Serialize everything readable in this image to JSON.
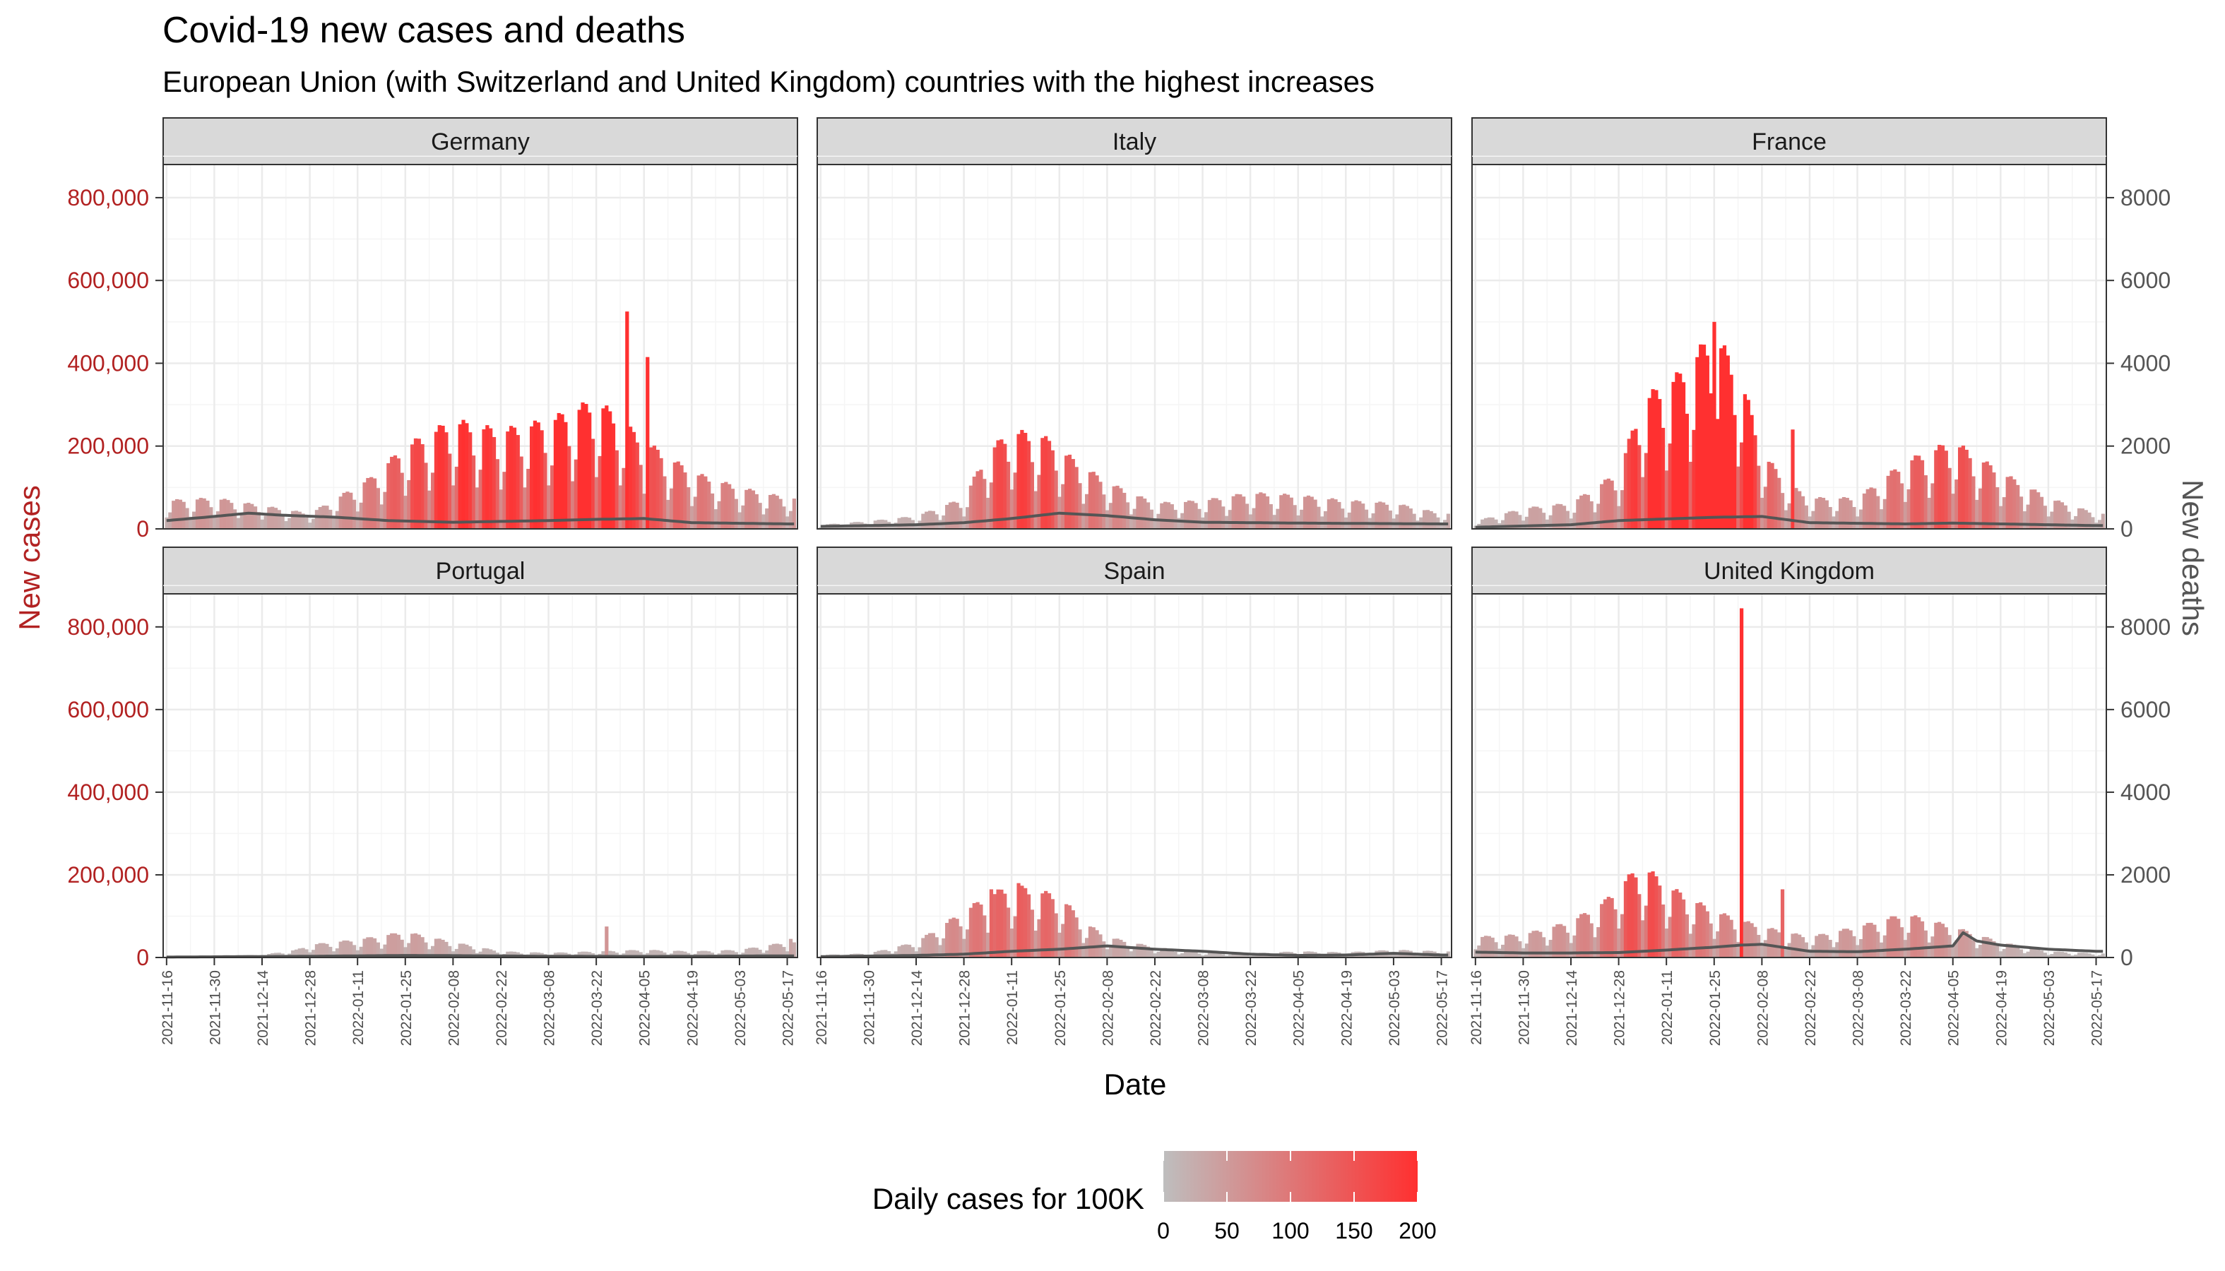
{
  "colors": {
    "low": "#BEBEBE",
    "high": "#FF3030",
    "cases_axis": "#B22222",
    "deaths_axis": "#555555",
    "deaths_line": "#555555",
    "grid_major": "#EBEBEB",
    "grid_minor": "#F5F5F5",
    "strip_fill": "#D9D9D9"
  },
  "chart_data": {
    "type": "bar",
    "title": "Covid-19 new cases and deaths",
    "subtitle": "European Union (with Switzerland and United Kingdom) countries with the highest increases",
    "xlabel": "Date",
    "ylabel_left": "New cases",
    "ylabel_right": "New deaths",
    "x_range": [
      "2021-11-15",
      "2022-05-20"
    ],
    "x_ticks": [
      "2021-11-16",
      "2021-11-30",
      "2021-12-14",
      "2021-12-28",
      "2022-01-11",
      "2022-01-25",
      "2022-02-08",
      "2022-02-22",
      "2022-03-08",
      "2022-03-22",
      "2022-04-05",
      "2022-04-19",
      "2022-05-03",
      "2022-05-17"
    ],
    "ylim_left": [
      0,
      880000
    ],
    "ylim_right": [
      0,
      8800
    ],
    "y_ticks_left": [
      0,
      200000,
      400000,
      600000,
      800000
    ],
    "y_tick_labels_left": [
      "0",
      "200,000",
      "400,000",
      "600,000",
      "800,000"
    ],
    "y_ticks_right": [
      0,
      2000,
      4000,
      6000,
      8000
    ],
    "y_tick_labels_right": [
      "0",
      "2000",
      "4000",
      "6000",
      "8000"
    ],
    "grid": true,
    "legend": {
      "title": "Daily cases for 100K",
      "position": "bottom",
      "scale": [
        0,
        200
      ],
      "ticks": [
        0,
        50,
        100,
        150,
        200
      ],
      "tick_labels": [
        "0",
        "50",
        "100",
        "150",
        "200"
      ]
    },
    "facets": [
      {
        "name": "Germany",
        "cases_mean": [
          [
            "2021-11-16",
            55000
          ],
          [
            "2021-11-30",
            60000
          ],
          [
            "2021-12-14",
            45000
          ],
          [
            "2021-12-28",
            30000
          ],
          [
            "2022-01-05",
            60000
          ],
          [
            "2022-01-15",
            100000
          ],
          [
            "2022-01-25",
            160000
          ],
          [
            "2022-02-08",
            210000
          ],
          [
            "2022-02-22",
            190000
          ],
          [
            "2022-03-08",
            210000
          ],
          [
            "2022-03-22",
            250000
          ],
          [
            "2022-04-05",
            170000
          ],
          [
            "2022-04-19",
            110000
          ],
          [
            "2022-05-03",
            80000
          ],
          [
            "2022-05-17",
            60000
          ]
        ],
        "spikes": [
          [
            "2022-03-31",
            525000
          ],
          [
            "2022-04-06",
            415000
          ]
        ],
        "deaths": [
          [
            "2021-11-16",
            200
          ],
          [
            "2021-11-30",
            300
          ],
          [
            "2021-12-10",
            380
          ],
          [
            "2021-12-20",
            330
          ],
          [
            "2022-01-05",
            280
          ],
          [
            "2022-01-20",
            200
          ],
          [
            "2022-02-08",
            160
          ],
          [
            "2022-03-08",
            200
          ],
          [
            "2022-03-22",
            230
          ],
          [
            "2022-04-05",
            250
          ],
          [
            "2022-04-19",
            150
          ],
          [
            "2022-05-17",
            120
          ]
        ]
      },
      {
        "name": "Italy",
        "cases_mean": [
          [
            "2021-11-16",
            8000
          ],
          [
            "2021-11-30",
            15000
          ],
          [
            "2021-12-14",
            25000
          ],
          [
            "2021-12-28",
            60000
          ],
          [
            "2022-01-04",
            150000
          ],
          [
            "2022-01-11",
            190000
          ],
          [
            "2022-01-20",
            180000
          ],
          [
            "2022-01-30",
            130000
          ],
          [
            "2022-02-08",
            90000
          ],
          [
            "2022-02-22",
            50000
          ],
          [
            "2022-03-08",
            55000
          ],
          [
            "2022-03-22",
            70000
          ],
          [
            "2022-04-05",
            65000
          ],
          [
            "2022-04-19",
            55000
          ],
          [
            "2022-05-03",
            50000
          ],
          [
            "2022-05-17",
            30000
          ]
        ],
        "spikes": [],
        "deaths": [
          [
            "2021-11-16",
            60
          ],
          [
            "2021-12-14",
            100
          ],
          [
            "2021-12-28",
            150
          ],
          [
            "2022-01-11",
            250
          ],
          [
            "2022-01-25",
            380
          ],
          [
            "2022-02-08",
            320
          ],
          [
            "2022-02-22",
            220
          ],
          [
            "2022-03-08",
            160
          ],
          [
            "2022-04-05",
            140
          ],
          [
            "2022-05-17",
            120
          ]
        ]
      },
      {
        "name": "France",
        "cases_mean": [
          [
            "2021-11-16",
            15000
          ],
          [
            "2021-11-30",
            40000
          ],
          [
            "2021-12-14",
            50000
          ],
          [
            "2021-12-28",
            110000
          ],
          [
            "2022-01-04",
            250000
          ],
          [
            "2022-01-15",
            300000
          ],
          [
            "2022-01-25",
            380000
          ],
          [
            "2022-02-02",
            290000
          ],
          [
            "2022-02-08",
            150000
          ],
          [
            "2022-02-15",
            90000
          ],
          [
            "2022-02-22",
            60000
          ],
          [
            "2022-03-08",
            60000
          ],
          [
            "2022-03-22",
            130000
          ],
          [
            "2022-04-05",
            170000
          ],
          [
            "2022-04-19",
            110000
          ],
          [
            "2022-05-03",
            60000
          ],
          [
            "2022-05-17",
            30000
          ]
        ],
        "spikes": [
          [
            "2022-01-25",
            500000
          ],
          [
            "2022-02-17",
            240000
          ]
        ],
        "deaths": [
          [
            "2021-11-16",
            40
          ],
          [
            "2021-12-14",
            100
          ],
          [
            "2021-12-28",
            200
          ],
          [
            "2022-01-25",
            280
          ],
          [
            "2022-02-08",
            300
          ],
          [
            "2022-02-22",
            150
          ],
          [
            "2022-03-22",
            120
          ],
          [
            "2022-04-05",
            140
          ],
          [
            "2022-04-19",
            120
          ],
          [
            "2022-05-17",
            80
          ]
        ]
      },
      {
        "name": "Portugal",
        "cases_mean": [
          [
            "2021-11-16",
            3000
          ],
          [
            "2021-12-14",
            5000
          ],
          [
            "2021-12-24",
            15000
          ],
          [
            "2021-12-28",
            25000
          ],
          [
            "2022-01-11",
            35000
          ],
          [
            "2022-01-25",
            50000
          ],
          [
            "2022-02-08",
            30000
          ],
          [
            "2022-02-22",
            12000
          ],
          [
            "2022-03-08",
            9000
          ],
          [
            "2022-03-22",
            12000
          ],
          [
            "2022-04-05",
            15000
          ],
          [
            "2022-04-19",
            12000
          ],
          [
            "2022-05-03",
            15000
          ],
          [
            "2022-05-17",
            30000
          ]
        ],
        "spikes": [
          [
            "2022-03-25",
            75000
          ],
          [
            "2022-05-18",
            45000
          ]
        ],
        "deaths": [
          [
            "2021-11-16",
            10
          ],
          [
            "2021-12-28",
            30
          ],
          [
            "2022-01-25",
            50
          ],
          [
            "2022-02-08",
            45
          ],
          [
            "2022-03-08",
            30
          ],
          [
            "2022-04-05",
            25
          ],
          [
            "2022-05-17",
            40
          ]
        ]
      },
      {
        "name": "Spain",
        "cases_mean": [
          [
            "2021-11-16",
            5000
          ],
          [
            "2021-11-30",
            8000
          ],
          [
            "2021-12-14",
            30000
          ],
          [
            "2021-12-28",
            90000
          ],
          [
            "2022-01-04",
            120000
          ],
          [
            "2022-01-11",
            140000
          ],
          [
            "2022-01-25",
            120000
          ],
          [
            "2022-02-01",
            70000
          ],
          [
            "2022-02-08",
            40000
          ],
          [
            "2022-02-22",
            20000
          ],
          [
            "2022-03-08",
            10000
          ],
          [
            "2022-03-22",
            8000
          ],
          [
            "2022-04-05",
            12000
          ],
          [
            "2022-04-19",
            10000
          ],
          [
            "2022-05-03",
            15000
          ],
          [
            "2022-05-17",
            12000
          ]
        ],
        "spikes": [
          [
            "2022-01-05",
            165000
          ],
          [
            "2022-01-13",
            180000
          ]
        ],
        "deaths": [
          [
            "2021-11-16",
            20
          ],
          [
            "2021-12-14",
            50
          ],
          [
            "2021-12-28",
            80
          ],
          [
            "2022-01-11",
            150
          ],
          [
            "2022-01-25",
            200
          ],
          [
            "2022-02-08",
            280
          ],
          [
            "2022-02-22",
            200
          ],
          [
            "2022-03-08",
            150
          ],
          [
            "2022-03-22",
            80
          ],
          [
            "2022-04-05",
            50
          ],
          [
            "2022-04-19",
            60
          ],
          [
            "2022-05-03",
            100
          ],
          [
            "2022-05-17",
            60
          ]
        ]
      },
      {
        "name": "United Kingdom",
        "cases_mean": [
          [
            "2021-11-16",
            40000
          ],
          [
            "2021-11-30",
            45000
          ],
          [
            "2021-12-14",
            70000
          ],
          [
            "2021-12-24",
            110000
          ],
          [
            "2021-12-28",
            140000
          ],
          [
            "2022-01-04",
            180000
          ],
          [
            "2022-01-11",
            140000
          ],
          [
            "2022-01-25",
            90000
          ],
          [
            "2022-02-08",
            60000
          ],
          [
            "2022-02-22",
            40000
          ],
          [
            "2022-03-08",
            60000
          ],
          [
            "2022-03-22",
            85000
          ],
          [
            "2022-04-05",
            60000
          ],
          [
            "2022-04-19",
            30000
          ],
          [
            "2022-05-03",
            12000
          ],
          [
            "2022-05-17",
            8000
          ]
        ],
        "spikes": [
          [
            "2022-02-02",
            845000
          ],
          [
            "2022-02-14",
            165000
          ]
        ],
        "deaths": [
          [
            "2021-11-16",
            130
          ],
          [
            "2021-11-30",
            110
          ],
          [
            "2021-12-14",
            110
          ],
          [
            "2021-12-28",
            120
          ],
          [
            "2022-01-11",
            180
          ],
          [
            "2022-01-25",
            250
          ],
          [
            "2022-02-02",
            300
          ],
          [
            "2022-02-08",
            320
          ],
          [
            "2022-02-22",
            150
          ],
          [
            "2022-03-08",
            140
          ],
          [
            "2022-03-22",
            200
          ],
          [
            "2022-04-05",
            280
          ],
          [
            "2022-04-08",
            600
          ],
          [
            "2022-04-12",
            400
          ],
          [
            "2022-04-19",
            300
          ],
          [
            "2022-05-03",
            200
          ],
          [
            "2022-05-17",
            150
          ]
        ]
      }
    ]
  }
}
